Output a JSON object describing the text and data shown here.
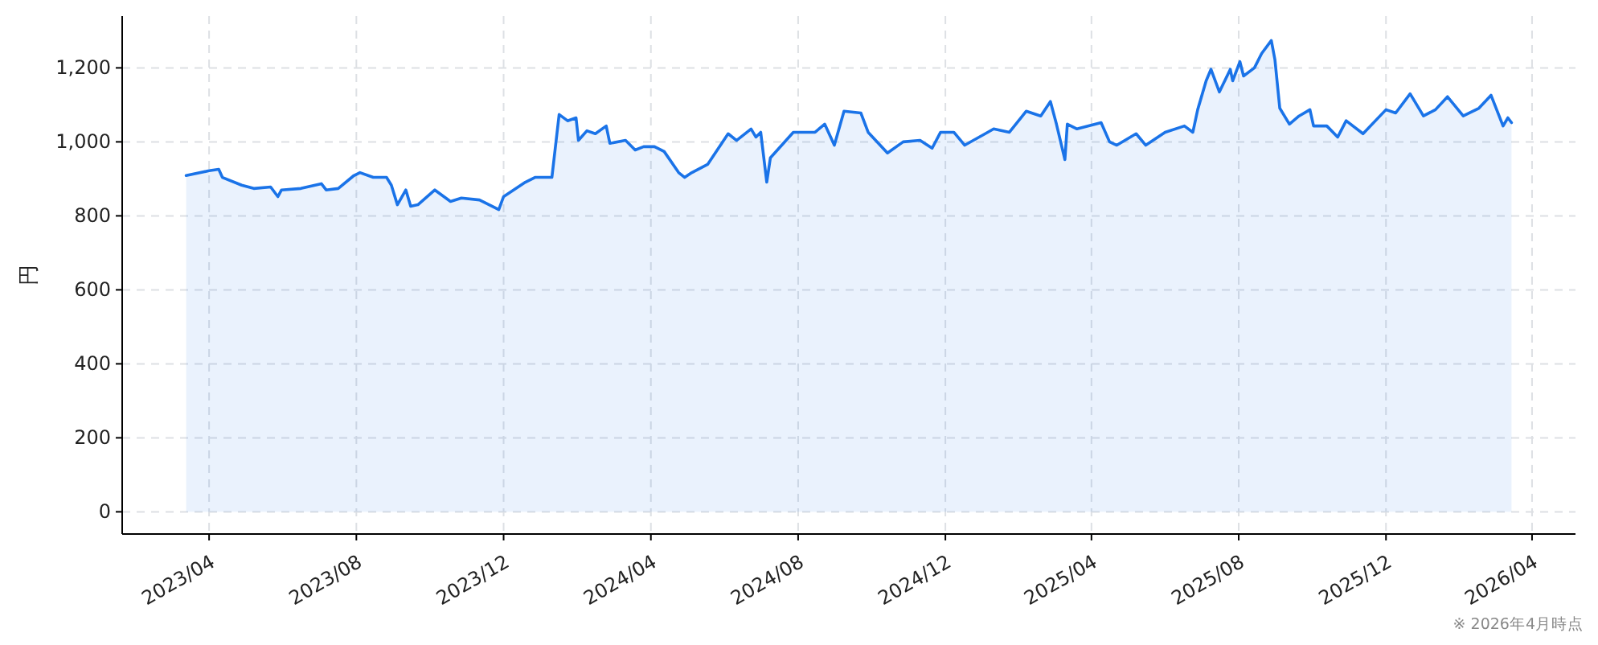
{
  "chart_data": {
    "type": "area",
    "ylabel": "円",
    "annotations": [
      "※ 2026年4月時点"
    ],
    "xlim": [
      "2023-01-19",
      "2026-05-07"
    ],
    "ylim": [
      -60,
      1340
    ],
    "xticks": [
      {
        "value": "2023-04-01",
        "label": "2023/04"
      },
      {
        "value": "2023-08-01",
        "label": "2023/08"
      },
      {
        "value": "2023-12-01",
        "label": "2023/12"
      },
      {
        "value": "2024-04-01",
        "label": "2024/04"
      },
      {
        "value": "2024-08-01",
        "label": "2024/08"
      },
      {
        "value": "2024-12-01",
        "label": "2024/12"
      },
      {
        "value": "2025-04-01",
        "label": "2025/04"
      },
      {
        "value": "2025-08-01",
        "label": "2025/08"
      },
      {
        "value": "2025-12-01",
        "label": "2025/12"
      },
      {
        "value": "2026-04-01",
        "label": "2026/04"
      }
    ],
    "yticks": [
      0,
      200,
      400,
      600,
      800,
      {
        "value": 1000,
        "label": "1,000"
      },
      {
        "value": 1200,
        "label": "1,200"
      }
    ],
    "grid": true,
    "x": [
      "2023-03-13",
      "2023-04-01",
      "2023-04-09",
      "2023-04-12",
      "2023-04-28",
      "2023-05-08",
      "2023-05-22",
      "2023-05-28",
      "2023-05-31",
      "2023-06-16",
      "2023-07-03",
      "2023-07-07",
      "2023-07-17",
      "2023-07-30",
      "2023-08-04",
      "2023-08-15",
      "2023-08-26",
      "2023-08-30",
      "2023-09-04",
      "2023-09-11",
      "2023-09-15",
      "2023-09-21",
      "2023-10-05",
      "2023-10-18",
      "2023-10-27",
      "2023-11-11",
      "2023-11-27",
      "2023-12-01",
      "2023-12-19",
      "2023-12-27",
      "2024-01-10",
      "2024-01-16",
      "2024-01-23",
      "2024-01-30",
      "2024-02-01",
      "2024-02-08",
      "2024-02-15",
      "2024-02-24",
      "2024-02-27",
      "2024-03-11",
      "2024-03-19",
      "2024-03-26",
      "2024-04-04",
      "2024-04-12",
      "2024-04-24",
      "2024-04-29",
      "2024-05-05",
      "2024-05-18",
      "2024-06-04",
      "2024-06-11",
      "2024-06-23",
      "2024-06-27",
      "2024-07-01",
      "2024-07-06",
      "2024-07-09",
      "2024-07-28",
      "2024-08-15",
      "2024-08-23",
      "2024-08-31",
      "2024-09-08",
      "2024-09-22",
      "2024-09-28",
      "2024-10-14",
      "2024-10-27",
      "2024-11-10",
      "2024-11-20",
      "2024-11-27",
      "2024-12-08",
      "2024-12-17",
      "2025-01-03",
      "2025-01-10",
      "2025-01-23",
      "2025-02-06",
      "2025-02-18",
      "2025-02-26",
      "2025-03-03",
      "2025-03-10",
      "2025-03-12",
      "2025-03-20",
      "2025-04-09",
      "2025-04-16",
      "2025-04-22",
      "2025-05-08",
      "2025-05-16",
      "2025-06-01",
      "2025-06-17",
      "2025-06-24",
      "2025-06-28",
      "2025-07-05",
      "2025-07-09",
      "2025-07-16",
      "2025-07-25",
      "2025-07-27",
      "2025-08-02",
      "2025-08-05",
      "2025-08-14",
      "2025-08-20",
      "2025-08-28",
      "2025-08-31",
      "2025-09-04",
      "2025-09-12",
      "2025-09-20",
      "2025-09-29",
      "2025-10-02",
      "2025-10-13",
      "2025-10-22",
      "2025-10-29",
      "2025-11-12",
      "2025-12-01",
      "2025-12-09",
      "2025-12-21",
      "2026-01-01",
      "2026-01-11",
      "2026-01-21",
      "2026-02-03",
      "2026-02-16",
      "2026-02-26",
      "2026-03-08",
      "2026-03-12",
      "2026-03-15"
    ],
    "series": [
      {
        "color": "#1a73e8",
        "values": [
          909,
          922,
          926,
          904,
          883,
          874,
          878,
          852,
          870,
          874,
          887,
          870,
          874,
          909,
          917,
          904,
          904,
          883,
          830,
          870,
          826,
          830,
          870,
          839,
          848,
          843,
          817,
          852,
          891,
          904,
          904,
          1074,
          1057,
          1065,
          1004,
          1030,
          1022,
          1043,
          996,
          1004,
          978,
          987,
          987,
          974,
          917,
          904,
          917,
          939,
          1022,
          1004,
          1035,
          1013,
          1026,
          891,
          957,
          1026,
          1026,
          1048,
          991,
          1083,
          1078,
          1026,
          970,
          1000,
          1004,
          983,
          1026,
          1026,
          991,
          1022,
          1035,
          1026,
          1083,
          1070,
          1109,
          1048,
          952,
          1048,
          1035,
          1052,
          1000,
          991,
          1022,
          991,
          1026,
          1043,
          1026,
          1087,
          1165,
          1196,
          1135,
          1196,
          1165,
          1217,
          1178,
          1200,
          1239,
          1274,
          1222,
          1091,
          1048,
          1070,
          1087,
          1043,
          1043,
          1013,
          1057,
          1022,
          1087,
          1078,
          1130,
          1070,
          1087,
          1122,
          1070,
          1091,
          1126,
          1043,
          1065,
          1052
        ]
      }
    ]
  }
}
